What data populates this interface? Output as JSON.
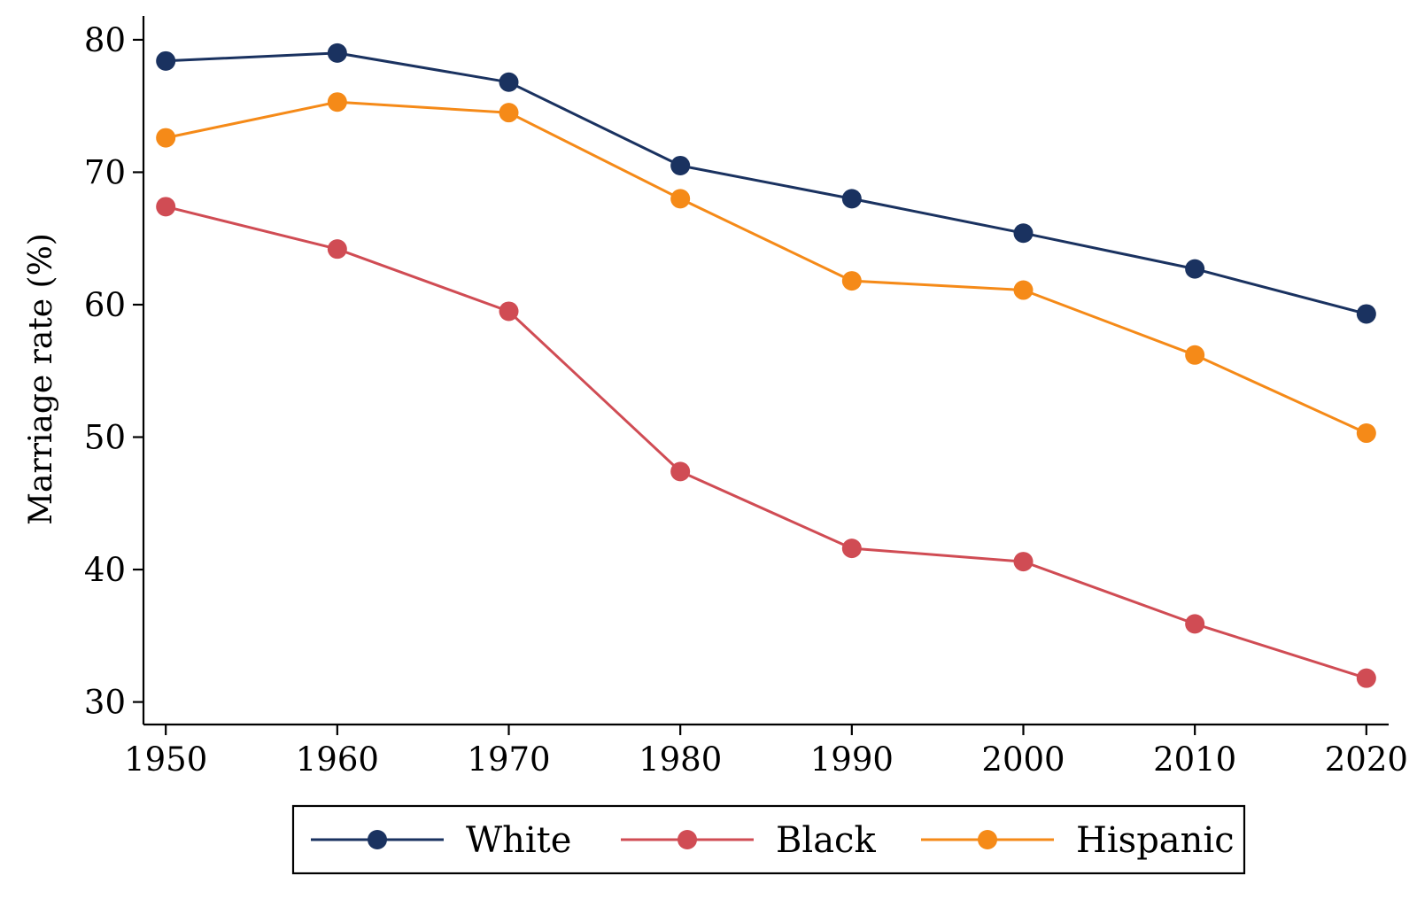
{
  "chart_data": {
    "type": "line",
    "title": "",
    "xlabel": "",
    "ylabel": "Marriage rate (%)",
    "x": [
      1950,
      1960,
      1970,
      1980,
      1990,
      2000,
      2010,
      2020
    ],
    "xlim": [
      1948.7,
      2021.3
    ],
    "ylim": [
      28.3,
      81.8
    ],
    "x_ticks": [
      "1950",
      "1960",
      "1970",
      "1980",
      "1990",
      "2000",
      "2010",
      "2020"
    ],
    "y_ticks": [
      "30",
      "40",
      "50",
      "60",
      "70",
      "80"
    ],
    "grid": false,
    "legend_position": "bottom",
    "series": [
      {
        "name": "White",
        "color": "#1a3260",
        "values": [
          78.4,
          79.0,
          76.8,
          70.5,
          68.0,
          65.4,
          62.7,
          59.3
        ]
      },
      {
        "name": "Black",
        "color": "#d04c54",
        "values": [
          67.4,
          64.2,
          59.5,
          47.4,
          41.6,
          40.6,
          35.9,
          31.8
        ]
      },
      {
        "name": "Hispanic",
        "color": "#f58a18",
        "values": [
          72.6,
          75.3,
          74.5,
          68.0,
          61.8,
          61.1,
          56.2,
          50.3
        ]
      }
    ]
  }
}
